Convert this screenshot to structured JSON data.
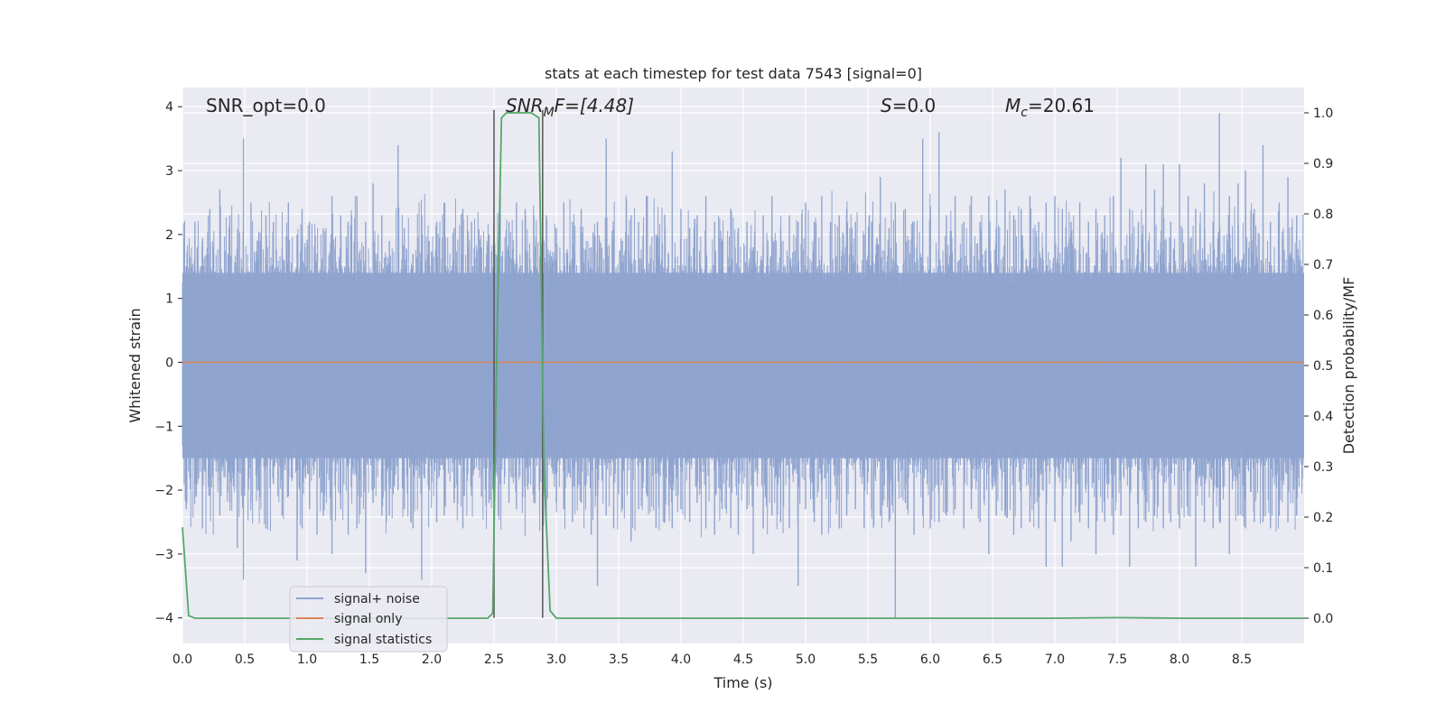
{
  "chart_data": {
    "type": "line",
    "title": "stats at each timestep for test data 7543 [signal=0]",
    "xlabel": "Time (s)",
    "ylabel": "Whitened strain",
    "y2label": "Detection probability/MF",
    "xlim": [
      0.0,
      9.0
    ],
    "ylim": [
      -4.4,
      4.3
    ],
    "y2lim": [
      -0.05,
      1.05
    ],
    "xticks": [
      "0.0",
      "0.5",
      "1.0",
      "1.5",
      "2.0",
      "2.5",
      "3.0",
      "3.5",
      "4.0",
      "4.5",
      "5.0",
      "5.5",
      "6.0",
      "6.5",
      "7.0",
      "7.5",
      "8.0",
      "8.5"
    ],
    "yticks": [
      "4",
      "3",
      "2",
      "1",
      "0",
      "−1",
      "−2",
      "−3",
      "−4"
    ],
    "y2ticks": [
      "1.0",
      "0.9",
      "0.8",
      "0.7",
      "0.6",
      "0.5",
      "0.4",
      "0.3",
      "0.2",
      "0.1",
      "0.0"
    ],
    "grid": true,
    "legend_position": "lower-left",
    "annotations": {
      "snr_opt": "SNR_opt=0.0",
      "snr_mf_base": "SNR",
      "snr_mf_sub": "M",
      "snr_mf_rest": "F=[4.48]",
      "s_base": "S",
      "s_rest": "=0.0",
      "mc_base": "M",
      "mc_sub": "c",
      "mc_rest": "=20.61"
    },
    "markers_x": [
      2.5,
      2.89
    ],
    "series": [
      {
        "name": "signal+ noise",
        "color": "#8fa4cf",
        "description_values": "whitened strain noise, approx. within [-4, 4]",
        "spikes": [
          [
            0.03,
            1.5,
            -2.3
          ],
          [
            0.1,
            2.2,
            -1.9
          ],
          [
            0.16,
            1.9,
            -2.6
          ],
          [
            0.22,
            2.4,
            -2.1
          ],
          [
            0.3,
            2.7,
            -2.4
          ],
          [
            0.38,
            2.3,
            -1.8
          ],
          [
            0.44,
            1.8,
            -2.9
          ],
          [
            0.49,
            3.5,
            -3.4
          ],
          [
            0.55,
            2.5,
            -2.2
          ],
          [
            0.6,
            1.9,
            -2.0
          ],
          [
            0.67,
            2.3,
            -2.6
          ],
          [
            0.73,
            2.2,
            -1.9
          ],
          [
            0.8,
            1.8,
            -2.4
          ],
          [
            0.85,
            2.5,
            -2.1
          ],
          [
            0.92,
            2.0,
            -3.1
          ],
          [
            0.96,
            2.4,
            -2.6
          ],
          [
            1.02,
            2.2,
            -2.3
          ],
          [
            1.08,
            1.7,
            -2.7
          ],
          [
            1.13,
            2.1,
            -2.4
          ],
          [
            1.2,
            2.6,
            -3.0
          ],
          [
            1.27,
            2.3,
            -2.3
          ],
          [
            1.33,
            2.2,
            -2.7
          ],
          [
            1.4,
            2.6,
            -2.6
          ],
          [
            1.47,
            2.2,
            -3.3
          ],
          [
            1.53,
            2.8,
            -2.2
          ],
          [
            1.6,
            2.3,
            -2.4
          ],
          [
            1.66,
            1.9,
            -2.4
          ],
          [
            1.73,
            3.4,
            -2.0
          ],
          [
            1.78,
            2.1,
            -2.3
          ],
          [
            1.85,
            1.7,
            -2.6
          ],
          [
            1.92,
            2.3,
            -3.4
          ],
          [
            1.98,
            1.9,
            -2.0
          ],
          [
            2.04,
            2.2,
            -2.5
          ],
          [
            2.1,
            2.5,
            -2.4
          ],
          [
            2.18,
            2.1,
            -2.2
          ],
          [
            2.25,
            2.4,
            -2.6
          ],
          [
            2.32,
            2.2,
            -2.0
          ],
          [
            2.4,
            1.8,
            -2.1
          ],
          [
            2.46,
            2.0,
            -2.2
          ],
          [
            2.55,
            2.6,
            -1.9
          ],
          [
            2.62,
            2.2,
            -2.2
          ],
          [
            2.68,
            2.5,
            -2.3
          ],
          [
            2.75,
            2.4,
            -2.1
          ],
          [
            2.82,
            2.3,
            -2.2
          ],
          [
            2.92,
            2.3,
            -2.4
          ],
          [
            3.0,
            2.1,
            -2.2
          ],
          [
            3.06,
            2.5,
            -2.3
          ],
          [
            3.13,
            2.2,
            -2.5
          ],
          [
            3.2,
            2.4,
            -2.2
          ],
          [
            3.28,
            1.8,
            -2.7
          ],
          [
            3.33,
            2.2,
            -3.5
          ],
          [
            3.4,
            3.5,
            -2.4
          ],
          [
            3.46,
            2.1,
            -2.6
          ],
          [
            3.53,
            1.9,
            -2.3
          ],
          [
            3.6,
            2.3,
            -2.8
          ],
          [
            3.66,
            2.2,
            -2.3
          ],
          [
            3.73,
            2.6,
            -2.1
          ],
          [
            3.8,
            2.0,
            -2.6
          ],
          [
            3.87,
            2.3,
            -2.5
          ],
          [
            3.93,
            3.3,
            -2.6
          ],
          [
            4.0,
            2.4,
            -2.3
          ],
          [
            4.07,
            2.1,
            -2.5
          ],
          [
            4.13,
            2.3,
            -2.2
          ],
          [
            4.2,
            2.6,
            -2.6
          ],
          [
            4.27,
            2.2,
            -2.7
          ],
          [
            4.33,
            1.9,
            -2.3
          ],
          [
            4.4,
            2.4,
            -2.6
          ],
          [
            4.46,
            2.1,
            -2.7
          ],
          [
            4.53,
            2.2,
            -2.3
          ],
          [
            4.58,
            1.8,
            -3.0
          ],
          [
            4.66,
            2.3,
            -2.6
          ],
          [
            4.73,
            2.6,
            -2.4
          ],
          [
            4.8,
            2.1,
            -2.5
          ],
          [
            4.87,
            2.3,
            -2.6
          ],
          [
            4.94,
            2.2,
            -3.5
          ],
          [
            5.0,
            2.5,
            -2.3
          ],
          [
            5.07,
            2.2,
            -2.5
          ],
          [
            5.13,
            2.6,
            -2.7
          ],
          [
            5.2,
            2.2,
            -2.2
          ],
          [
            5.27,
            2.3,
            -2.6
          ],
          [
            5.33,
            2.4,
            -2.4
          ],
          [
            5.4,
            2.2,
            -2.3
          ],
          [
            5.47,
            2.0,
            -2.6
          ],
          [
            5.53,
            2.2,
            -2.3
          ],
          [
            5.6,
            2.9,
            -2.4
          ],
          [
            5.67,
            2.1,
            -2.5
          ],
          [
            5.72,
            2.5,
            -4.0
          ],
          [
            5.8,
            2.4,
            -2.2
          ],
          [
            5.87,
            2.2,
            -2.7
          ],
          [
            5.94,
            3.5,
            -2.4
          ],
          [
            6.0,
            2.2,
            -2.6
          ],
          [
            6.07,
            3.6,
            -2.5
          ],
          [
            6.13,
            2.3,
            -2.4
          ],
          [
            6.2,
            2.6,
            -2.3
          ],
          [
            6.27,
            2.2,
            -2.6
          ],
          [
            6.33,
            2.6,
            -2.3
          ],
          [
            6.4,
            2.2,
            -2.5
          ],
          [
            6.47,
            2.6,
            -3.0
          ],
          [
            6.53,
            2.1,
            -2.4
          ],
          [
            6.6,
            2.7,
            -2.4
          ],
          [
            6.67,
            2.3,
            -2.7
          ],
          [
            6.73,
            2.4,
            -2.6
          ],
          [
            6.8,
            2.6,
            -2.5
          ],
          [
            6.87,
            2.2,
            -2.6
          ],
          [
            6.93,
            2.5,
            -3.2
          ],
          [
            7.0,
            2.6,
            -2.5
          ],
          [
            7.06,
            2.4,
            -3.2
          ],
          [
            7.13,
            2.2,
            -2.8
          ],
          [
            7.2,
            2.5,
            -2.5
          ],
          [
            7.27,
            2.2,
            -2.6
          ],
          [
            7.33,
            2.4,
            -3.0
          ],
          [
            7.4,
            2.3,
            -2.5
          ],
          [
            7.47,
            2.6,
            -2.7
          ],
          [
            7.53,
            3.2,
            -2.4
          ],
          [
            7.6,
            2.4,
            -3.2
          ],
          [
            7.67,
            2.2,
            -2.6
          ],
          [
            7.73,
            3.1,
            -2.5
          ],
          [
            7.8,
            2.7,
            -2.4
          ],
          [
            7.87,
            3.1,
            -2.6
          ],
          [
            7.93,
            2.2,
            -2.5
          ],
          [
            8.0,
            3.1,
            -2.6
          ],
          [
            8.07,
            2.6,
            -2.4
          ],
          [
            8.13,
            2.4,
            -3.2
          ],
          [
            8.2,
            2.8,
            -2.5
          ],
          [
            8.27,
            2.2,
            -2.6
          ],
          [
            8.32,
            3.9,
            -2.5
          ],
          [
            8.4,
            2.6,
            -3.0
          ],
          [
            8.47,
            2.8,
            -2.4
          ],
          [
            8.53,
            3.0,
            -2.6
          ],
          [
            8.6,
            2.4,
            -2.5
          ],
          [
            8.67,
            3.4,
            -2.5
          ],
          [
            8.73,
            2.2,
            -2.6
          ],
          [
            8.8,
            2.5,
            -2.4
          ],
          [
            8.87,
            2.9,
            -2.5
          ],
          [
            8.94,
            2.3,
            -2.4
          ]
        ]
      },
      {
        "name": "signal only",
        "color": "#dd8452",
        "x": [
          0.0,
          9.0
        ],
        "y": [
          0.0,
          0.0
        ]
      },
      {
        "name": "signal statistics",
        "color": "#55a868",
        "axis": "right",
        "x": [
          0.0,
          0.05,
          0.1,
          1.0,
          2.0,
          2.45,
          2.49,
          2.52,
          2.56,
          2.6,
          2.8,
          2.86,
          2.9,
          2.95,
          3.0,
          4.0,
          5.0,
          6.0,
          7.0,
          7.5,
          8.0,
          9.0
        ],
        "y": [
          0.18,
          0.005,
          0.0,
          0.0,
          0.0,
          0.0,
          0.01,
          0.5,
          0.99,
          1.0,
          1.0,
          0.99,
          0.3,
          0.015,
          0.0,
          0.0,
          0.0,
          0.0,
          0.0,
          0.001,
          0.0,
          0.0
        ]
      }
    ]
  }
}
